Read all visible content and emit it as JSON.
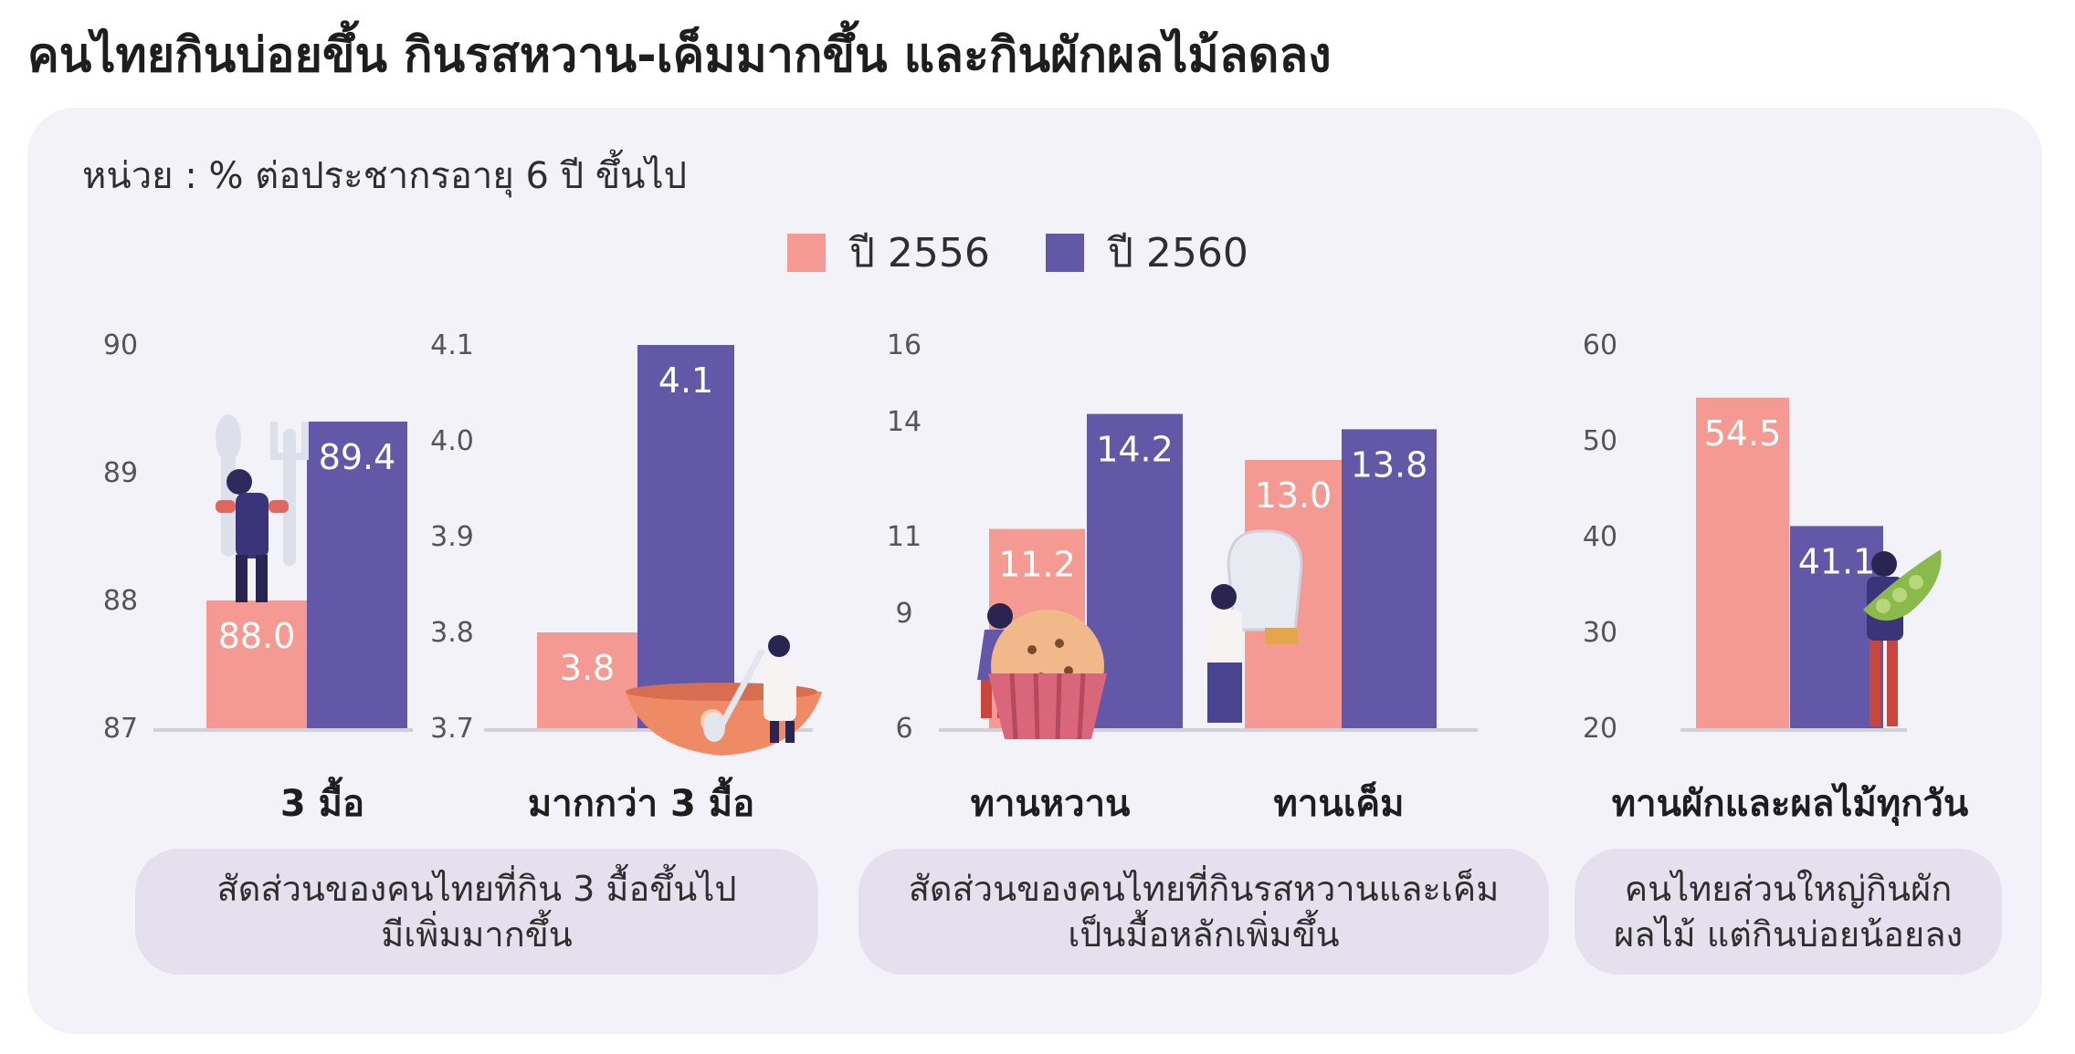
{
  "title": "คนไทยกินบ่อยขึ้น กินรสหวาน-เค็มมากขึ้น และกินผักผลไม้ลดลง",
  "unit_label": "หน่วย : % ต่อประชากรอายุ 6 ปี ขึ้นไป",
  "legend": [
    {
      "label": "ปี 2556",
      "color": "#f49a92"
    },
    {
      "label": "ปี 2560",
      "color": "#6358a8"
    }
  ],
  "colors": {
    "panel": "#f4f2f9",
    "note_box": "#e4e0ed",
    "bar_2556": "#f49a92",
    "bar_2560": "#6358a8",
    "baseline": "#d2d0d6"
  },
  "chart_data": [
    {
      "type": "bar",
      "categories": [
        "3 มื้อ"
      ],
      "series": [
        {
          "name": "ปี 2556",
          "values": [
            88.0
          ]
        },
        {
          "name": "ปี 2560",
          "values": [
            89.4
          ]
        }
      ],
      "ylim": [
        87,
        90
      ],
      "yticks": [
        "87",
        "88",
        "89",
        "90"
      ],
      "value_labels": [
        "88.0",
        "89.4"
      ],
      "grid": false
    },
    {
      "type": "bar",
      "categories": [
        "มากกว่า 3 มื้อ"
      ],
      "series": [
        {
          "name": "ปี 2556",
          "values": [
            3.8
          ]
        },
        {
          "name": "ปี 2560",
          "values": [
            4.1
          ]
        }
      ],
      "ylim": [
        3.7,
        4.1
      ],
      "yticks": [
        "3.7",
        "3.8",
        "3.9",
        "4.0",
        "4.1"
      ],
      "value_labels": [
        "3.8",
        "4.1"
      ],
      "grid": false
    },
    {
      "type": "bar",
      "categories": [
        "ทานหวาน",
        "ทานเค็ม"
      ],
      "series": [
        {
          "name": "ปี 2556",
          "values": [
            11.2,
            13.0
          ]
        },
        {
          "name": "ปี 2560",
          "values": [
            14.2,
            13.8
          ]
        }
      ],
      "ylim": [
        6,
        16
      ],
      "yticks": [
        "6",
        "9",
        "11",
        "14",
        "16"
      ],
      "value_labels": [
        "11.2",
        "14.2",
        "13.0",
        "13.8"
      ],
      "grid": false
    },
    {
      "type": "bar",
      "categories": [
        "ทานผักและผลไม้ทุกวัน"
      ],
      "series": [
        {
          "name": "ปี 2556",
          "values": [
            54.5
          ]
        },
        {
          "name": "ปี 2560",
          "values": [
            41.1
          ]
        }
      ],
      "ylim": [
        20,
        60
      ],
      "yticks": [
        "20",
        "30",
        "40",
        "50",
        "60"
      ],
      "value_labels": [
        "54.5",
        "41.1"
      ],
      "grid": false
    }
  ],
  "notes": [
    "สัดส่วนของคนไทยที่กิน 3 มื้อขึ้นไป\nมีเพิ่มมากขึ้น",
    "สัดส่วนของคนไทยที่กินรสหวานและเค็ม\nเป็นมื้อหลักเพิ่มขึ้น",
    "คนไทยส่วนใหญ่กินผัก\nผลไม้ แต่กินบ่อยน้อยลง"
  ],
  "illustrations": [
    "person-with-fork-icon",
    "person-with-spoon-icon",
    "woman-with-muffin-icon",
    "woman-with-salt-shaker-icon",
    "woman-with-pea-pod-icon"
  ]
}
